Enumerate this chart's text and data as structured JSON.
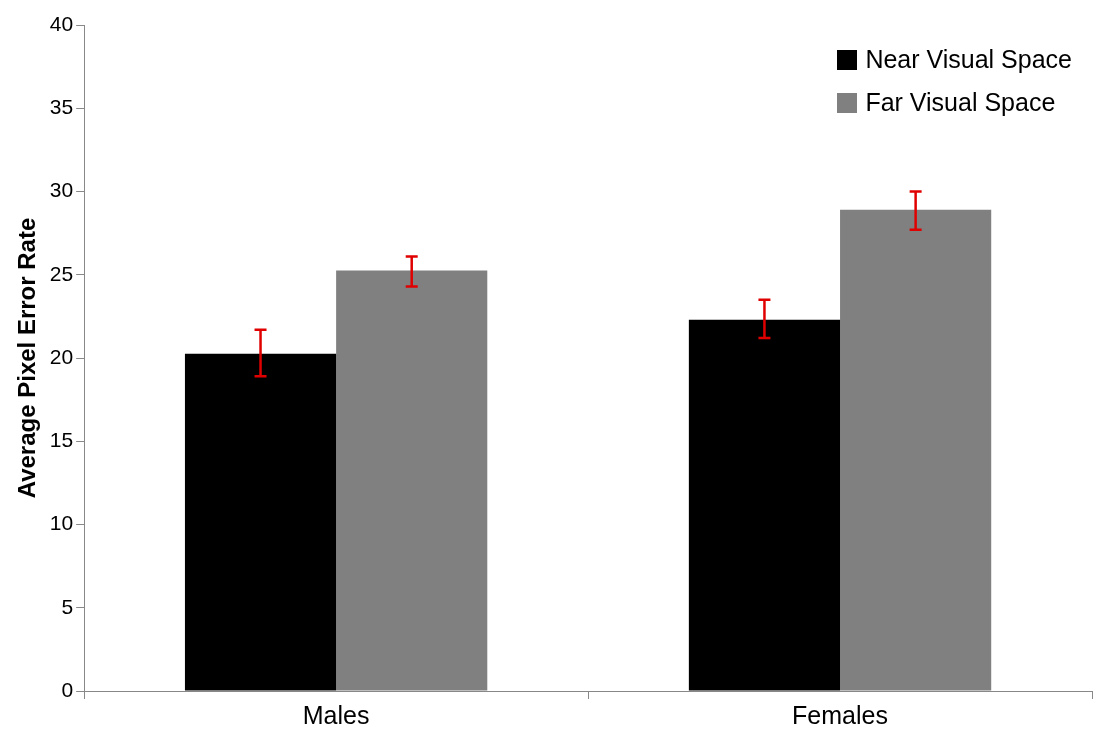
{
  "chart_data": {
    "type": "bar",
    "ylabel": "Average Pixel Error Rate",
    "categories": [
      "Males",
      "Females"
    ],
    "series": [
      {
        "name": "Near Visual Space",
        "color": "#000000",
        "values": [
          20.25,
          22.3
        ],
        "errors": [
          [
            18.9,
            21.7
          ],
          [
            21.2,
            23.5
          ]
        ]
      },
      {
        "name": "Far Visual Space",
        "color": "#808080",
        "values": [
          25.25,
          28.9
        ],
        "errors": [
          [
            24.3,
            26.1
          ],
          [
            27.7,
            30.0
          ]
        ]
      }
    ],
    "ylim": [
      0,
      40
    ],
    "yticks": [
      0,
      5,
      10,
      15,
      20,
      25,
      30,
      35,
      40
    ],
    "grid": false,
    "legend": "top right"
  }
}
